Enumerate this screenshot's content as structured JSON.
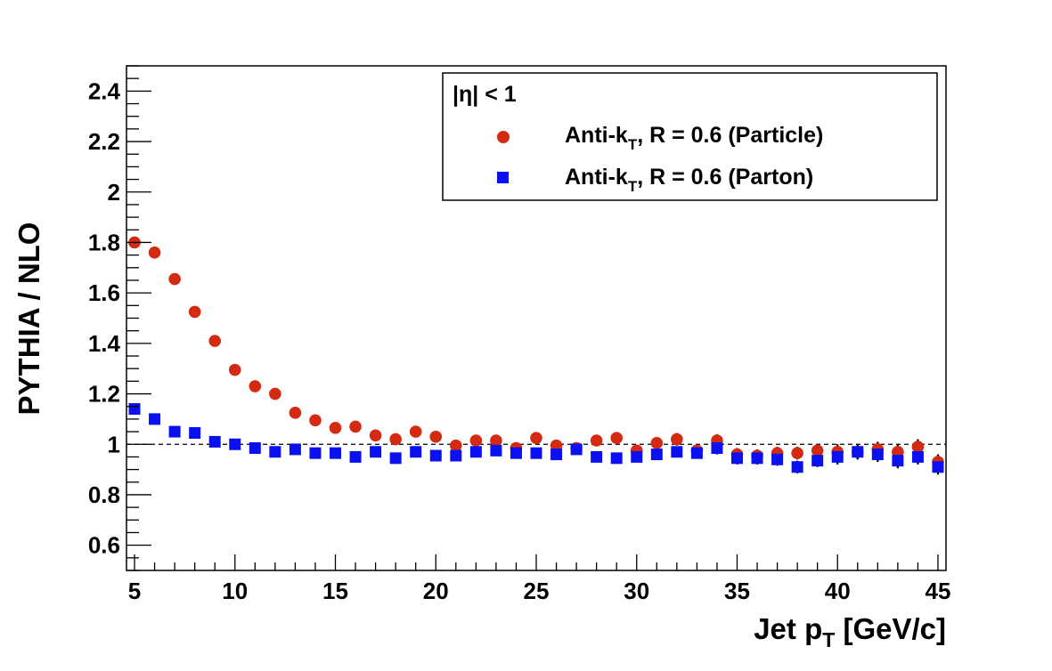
{
  "chart_data": {
    "type": "scatter",
    "xlabel": "Jet p",
    "xlabel_sub": "T",
    "xlabel_unit": " [GeV/c]",
    "ylabel": "PYTHIA / NLO",
    "xlim": [
      4.6,
      45.4
    ],
    "ylim": [
      0.5,
      2.5
    ],
    "x_ticks": [
      5,
      10,
      15,
      20,
      25,
      30,
      35,
      40,
      45
    ],
    "y_ticks": [
      0.6,
      0.8,
      1,
      1.2,
      1.4,
      1.6,
      1.8,
      2,
      2.2,
      2.4
    ],
    "y_tick_labels": [
      "0.6",
      "0.8",
      "1",
      "1.2",
      "1.4",
      "1.6",
      "1.8",
      "2",
      "2.2",
      "2.4"
    ],
    "reference_line": 1.0,
    "grid": false,
    "legend": {
      "position": "top-right",
      "header": "|η| < 1",
      "entries": [
        {
          "label_main": "Anti-k",
          "label_sub": "T",
          "label_rest": ", R = 0.6 (Particle)"
        },
        {
          "label_main": "Anti-k",
          "label_sub": "T",
          "label_rest": ", R = 0.6 (Parton)"
        }
      ]
    },
    "series": [
      {
        "marker": "circle",
        "color": "#d42a12",
        "points": [
          [
            5,
            1.8,
            0.005
          ],
          [
            6,
            1.76,
            0.005
          ],
          [
            7,
            1.655,
            0.005
          ],
          [
            8,
            1.525,
            0.005
          ],
          [
            9,
            1.41,
            0.005
          ],
          [
            10,
            1.295,
            0.005
          ],
          [
            11,
            1.23,
            0.005
          ],
          [
            12,
            1.2,
            0.005
          ],
          [
            13,
            1.125,
            0.005
          ],
          [
            14,
            1.095,
            0.005
          ],
          [
            15,
            1.065,
            0.005
          ],
          [
            16,
            1.07,
            0.005
          ],
          [
            17,
            1.035,
            0.005
          ],
          [
            18,
            1.02,
            0.005
          ],
          [
            19,
            1.05,
            0.005
          ],
          [
            20,
            1.03,
            0.005
          ],
          [
            21,
            0.995,
            0.008
          ],
          [
            22,
            1.015,
            0.008
          ],
          [
            23,
            1.015,
            0.008
          ],
          [
            24,
            0.985,
            0.008
          ],
          [
            25,
            1.025,
            0.01
          ],
          [
            26,
            0.995,
            0.01
          ],
          [
            27,
            0.985,
            0.012
          ],
          [
            28,
            1.015,
            0.02
          ],
          [
            29,
            1.025,
            0.02
          ],
          [
            30,
            0.975,
            0.02
          ],
          [
            31,
            1.005,
            0.02
          ],
          [
            32,
            1.02,
            0.025
          ],
          [
            33,
            0.975,
            0.025
          ],
          [
            34,
            1.015,
            0.025
          ],
          [
            35,
            0.96,
            0.025
          ],
          [
            36,
            0.955,
            0.025
          ],
          [
            37,
            0.965,
            0.025
          ],
          [
            38,
            0.965,
            0.025
          ],
          [
            39,
            0.975,
            0.025
          ],
          [
            40,
            0.97,
            0.03
          ],
          [
            41,
            0.97,
            0.03
          ],
          [
            42,
            0.98,
            0.03
          ],
          [
            43,
            0.97,
            0.03
          ],
          [
            44,
            0.99,
            0.03
          ],
          [
            45,
            0.93,
            0.03
          ]
        ]
      },
      {
        "marker": "square",
        "color": "#0a10f0",
        "points": [
          [
            5,
            1.14,
            0.005
          ],
          [
            6,
            1.1,
            0.005
          ],
          [
            7,
            1.05,
            0.005
          ],
          [
            8,
            1.045,
            0.005
          ],
          [
            9,
            1.01,
            0.005
          ],
          [
            10,
            1.0,
            0.005
          ],
          [
            11,
            0.985,
            0.005
          ],
          [
            12,
            0.97,
            0.005
          ],
          [
            13,
            0.98,
            0.005
          ],
          [
            14,
            0.965,
            0.005
          ],
          [
            15,
            0.965,
            0.005
          ],
          [
            16,
            0.95,
            0.005
          ],
          [
            17,
            0.97,
            0.005
          ],
          [
            18,
            0.945,
            0.005
          ],
          [
            19,
            0.97,
            0.005
          ],
          [
            20,
            0.955,
            0.005
          ],
          [
            21,
            0.955,
            0.008
          ],
          [
            22,
            0.97,
            0.008
          ],
          [
            23,
            0.975,
            0.008
          ],
          [
            24,
            0.965,
            0.008
          ],
          [
            25,
            0.965,
            0.01
          ],
          [
            26,
            0.96,
            0.01
          ],
          [
            27,
            0.98,
            0.012
          ],
          [
            28,
            0.95,
            0.015
          ],
          [
            29,
            0.945,
            0.015
          ],
          [
            30,
            0.95,
            0.02
          ],
          [
            31,
            0.96,
            0.02
          ],
          [
            32,
            0.97,
            0.02
          ],
          [
            33,
            0.965,
            0.02
          ],
          [
            34,
            0.985,
            0.025
          ],
          [
            35,
            0.945,
            0.025
          ],
          [
            36,
            0.945,
            0.025
          ],
          [
            37,
            0.94,
            0.025
          ],
          [
            38,
            0.91,
            0.025
          ],
          [
            39,
            0.935,
            0.025
          ],
          [
            40,
            0.95,
            0.03
          ],
          [
            41,
            0.97,
            0.03
          ],
          [
            42,
            0.96,
            0.03
          ],
          [
            43,
            0.935,
            0.03
          ],
          [
            44,
            0.95,
            0.03
          ],
          [
            45,
            0.91,
            0.03
          ]
        ]
      }
    ]
  }
}
